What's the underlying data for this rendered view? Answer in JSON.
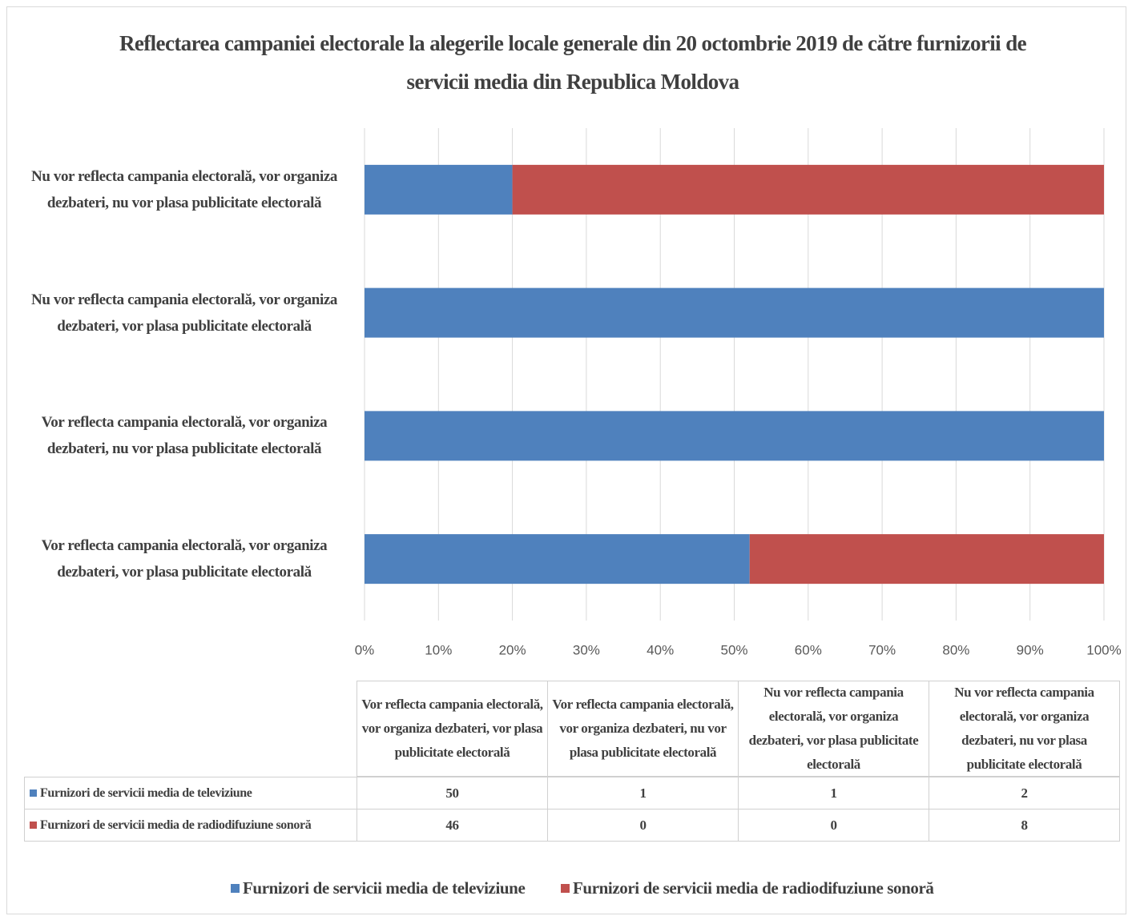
{
  "chart_data": {
    "type": "bar",
    "orientation": "horizontal",
    "stacked": "percent",
    "title": "Reflectarea campaniei electorale la alegerile locale generale din 20 octombrie 2019 de către furnizorii de servicii media din Republica Moldova",
    "categories": [
      "Vor reflecta campania electorală, vor organiza dezbateri, vor plasa publicitate electorală",
      "Vor reflecta campania electorală, vor organiza dezbateri, nu vor plasa publicitate electorală",
      "Nu vor reflecta campania electorală, vor organiza dezbateri, vor plasa publicitate electorală",
      "Nu vor reflecta campania electorală, vor organiza dezbateri, nu vor plasa publicitate electorală"
    ],
    "series": [
      {
        "name": "Furnizori de servicii media de televiziune",
        "color": "#4f81bd",
        "values": [
          50,
          1,
          1,
          2
        ]
      },
      {
        "name": "Furnizori de servicii media de radiodifuziune sonoră",
        "color": "#c0504d",
        "values": [
          46,
          0,
          0,
          8
        ]
      }
    ],
    "xlim": [
      0,
      100
    ],
    "xticks": [
      {
        "value": 0,
        "label": "0%"
      },
      {
        "value": 10,
        "label": "10%"
      },
      {
        "value": 20,
        "label": "20%"
      },
      {
        "value": 30,
        "label": "30%"
      },
      {
        "value": 40,
        "label": "40%"
      },
      {
        "value": 50,
        "label": "50%"
      },
      {
        "value": 60,
        "label": "60%"
      },
      {
        "value": 70,
        "label": "70%"
      },
      {
        "value": 80,
        "label": "80%"
      },
      {
        "value": 90,
        "label": "90%"
      },
      {
        "value": 100,
        "label": "100%"
      }
    ],
    "grid": true,
    "data_table": true,
    "legend": "bottom"
  }
}
